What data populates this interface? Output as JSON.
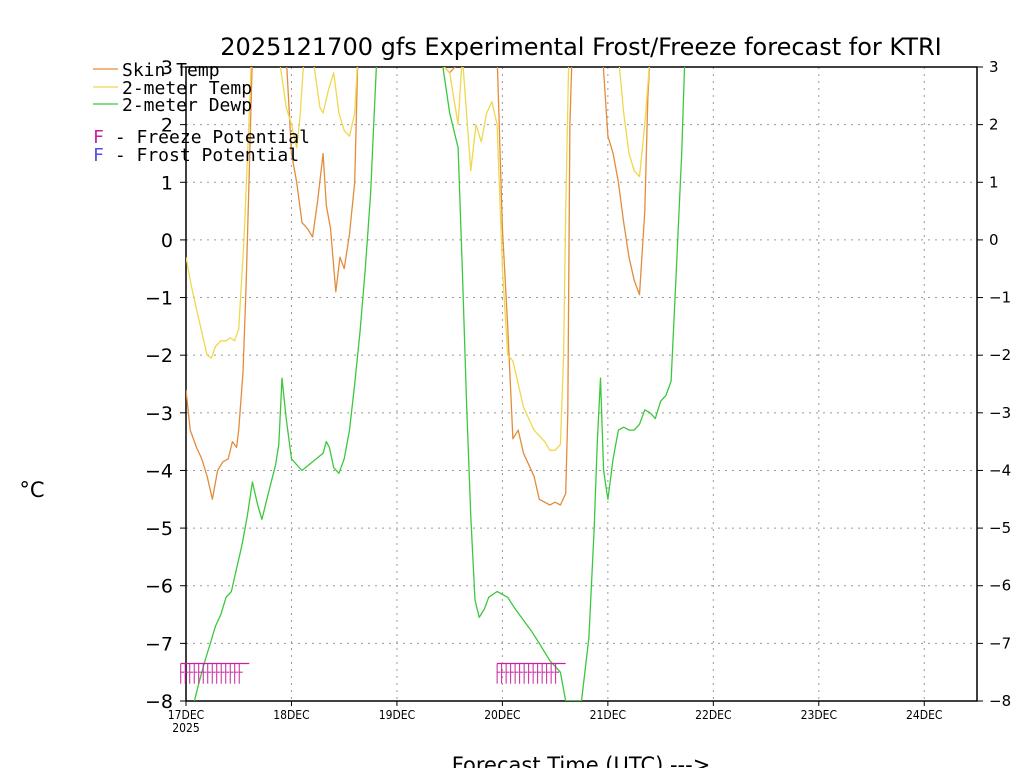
{
  "chart_data": {
    "type": "line",
    "title": "2025121700 gfs Experimental Frost/Freeze forecast for KTRI",
    "xlabel": "Forecast Time (UTC) --->",
    "ylabel": "°C",
    "ylim": [
      -8,
      3
    ],
    "xlim": [
      0,
      7.5
    ],
    "yticks": [
      3,
      2,
      1,
      0,
      -1,
      -2,
      -3,
      -4,
      -5,
      -6,
      -7,
      -8
    ],
    "ytick_labels": [
      "3",
      "2",
      "1",
      "0",
      "−1",
      "−2",
      "−3",
      "−4",
      "−5",
      "−6",
      "−7",
      "−8"
    ],
    "xticks": [
      0,
      1,
      2,
      3,
      4,
      5,
      6,
      7
    ],
    "xtick_labels": [
      "17DEC",
      "18DEC",
      "19DEC",
      "20DEC",
      "21DEC",
      "22DEC",
      "23DEC",
      "24DEC"
    ],
    "x_year_label": "2025",
    "grid": true,
    "series": [
      {
        "name": "Skin Temp",
        "color": "#e38c3c",
        "points": [
          [
            0,
            -2.6
          ],
          [
            0.04,
            -3.3
          ],
          [
            0.1,
            -3.6
          ],
          [
            0.15,
            -3.8
          ],
          [
            0.2,
            -4.1
          ],
          [
            0.25,
            -4.5
          ],
          [
            0.3,
            -4.0
          ],
          [
            0.35,
            -3.85
          ],
          [
            0.4,
            -3.8
          ],
          [
            0.44,
            -3.5
          ],
          [
            0.48,
            -3.6
          ],
          [
            0.5,
            -3.3
          ],
          [
            0.54,
            -2.3
          ],
          [
            0.57,
            -0.8
          ],
          [
            0.6,
            1.2
          ],
          [
            0.63,
            3.2
          ],
          [
            0.95,
            3.2
          ],
          [
            1.0,
            1.5
          ],
          [
            1.05,
            1.0
          ],
          [
            1.1,
            0.3
          ],
          [
            1.15,
            0.2
          ],
          [
            1.2,
            0.05
          ],
          [
            1.25,
            0.7
          ],
          [
            1.3,
            1.5
          ],
          [
            1.33,
            0.6
          ],
          [
            1.37,
            0.2
          ],
          [
            1.42,
            -0.9
          ],
          [
            1.46,
            -0.3
          ],
          [
            1.5,
            -0.5
          ],
          [
            1.55,
            0.1
          ],
          [
            1.6,
            1.0
          ],
          [
            1.63,
            3.2
          ],
          [
            2.35,
            3.2
          ],
          [
            2.45,
            3.0
          ],
          [
            2.5,
            2.9
          ],
          [
            2.55,
            3.0
          ],
          [
            2.6,
            3.2
          ],
          [
            2.95,
            3.2
          ],
          [
            3.0,
            0.2
          ],
          [
            3.05,
            -1.5
          ],
          [
            3.1,
            -3.45
          ],
          [
            3.15,
            -3.3
          ],
          [
            3.2,
            -3.7
          ],
          [
            3.3,
            -4.1
          ],
          [
            3.35,
            -4.5
          ],
          [
            3.45,
            -4.6
          ],
          [
            3.5,
            -4.55
          ],
          [
            3.55,
            -4.6
          ],
          [
            3.6,
            -4.4
          ],
          [
            3.62,
            -3.0
          ],
          [
            3.64,
            2.0
          ],
          [
            3.66,
            3.2
          ],
          [
            3.95,
            3.2
          ],
          [
            4.0,
            1.8
          ],
          [
            4.05,
            1.5
          ],
          [
            4.1,
            1.0
          ],
          [
            4.15,
            0.3
          ],
          [
            4.2,
            -0.3
          ],
          [
            4.25,
            -0.7
          ],
          [
            4.3,
            -0.95
          ],
          [
            4.35,
            0.5
          ],
          [
            4.38,
            2.5
          ],
          [
            4.4,
            3.2
          ]
        ]
      },
      {
        "name": "2-meter Temp",
        "color": "#f0d84c",
        "points": [
          [
            0,
            -0.3
          ],
          [
            0.05,
            -0.8
          ],
          [
            0.1,
            -1.2
          ],
          [
            0.15,
            -1.6
          ],
          [
            0.2,
            -2.0
          ],
          [
            0.24,
            -2.05
          ],
          [
            0.28,
            -1.85
          ],
          [
            0.33,
            -1.75
          ],
          [
            0.38,
            -1.75
          ],
          [
            0.42,
            -1.7
          ],
          [
            0.46,
            -1.75
          ],
          [
            0.5,
            -1.55
          ],
          [
            0.55,
            0.0
          ],
          [
            0.6,
            2.2
          ],
          [
            0.62,
            3.2
          ],
          [
            0.88,
            3.2
          ],
          [
            0.95,
            2.3
          ],
          [
            1.0,
            2.0
          ],
          [
            1.05,
            1.6
          ],
          [
            1.08,
            2.1
          ],
          [
            1.12,
            3.2
          ],
          [
            1.2,
            3.2
          ],
          [
            1.27,
            2.3
          ],
          [
            1.3,
            2.2
          ],
          [
            1.35,
            2.6
          ],
          [
            1.4,
            2.9
          ],
          [
            1.45,
            2.2
          ],
          [
            1.5,
            1.9
          ],
          [
            1.55,
            1.8
          ],
          [
            1.6,
            2.2
          ],
          [
            1.63,
            3.2
          ],
          [
            2.35,
            3.2
          ],
          [
            2.45,
            3.0
          ],
          [
            2.5,
            2.9
          ],
          [
            2.58,
            2.0
          ],
          [
            2.62,
            3.2
          ],
          [
            2.7,
            1.2
          ],
          [
            2.75,
            2.0
          ],
          [
            2.8,
            1.7
          ],
          [
            2.85,
            2.2
          ],
          [
            2.9,
            2.4
          ],
          [
            2.95,
            2.0
          ],
          [
            3.0,
            -0.5
          ],
          [
            3.05,
            -2.0
          ],
          [
            3.1,
            -2.1
          ],
          [
            3.15,
            -2.5
          ],
          [
            3.2,
            -2.9
          ],
          [
            3.3,
            -3.3
          ],
          [
            3.4,
            -3.5
          ],
          [
            3.45,
            -3.65
          ],
          [
            3.5,
            -3.65
          ],
          [
            3.55,
            -3.55
          ],
          [
            3.58,
            -2.0
          ],
          [
            3.6,
            0.5
          ],
          [
            3.63,
            3.2
          ],
          [
            4.1,
            3.2
          ],
          [
            4.15,
            2.2
          ],
          [
            4.2,
            1.5
          ],
          [
            4.25,
            1.2
          ],
          [
            4.3,
            1.1
          ],
          [
            4.35,
            2.0
          ],
          [
            4.4,
            3.2
          ]
        ]
      },
      {
        "name": "2-meter Dewp",
        "color": "#3cc83c",
        "points": [
          [
            0.08,
            -8.0
          ],
          [
            0.12,
            -7.7
          ],
          [
            0.18,
            -7.3
          ],
          [
            0.23,
            -7.0
          ],
          [
            0.28,
            -6.7
          ],
          [
            0.33,
            -6.5
          ],
          [
            0.38,
            -6.2
          ],
          [
            0.43,
            -6.1
          ],
          [
            0.48,
            -5.7
          ],
          [
            0.53,
            -5.3
          ],
          [
            0.58,
            -4.8
          ],
          [
            0.63,
            -4.2
          ],
          [
            0.68,
            -4.6
          ],
          [
            0.72,
            -4.85
          ],
          [
            0.78,
            -4.4
          ],
          [
            0.85,
            -3.9
          ],
          [
            0.88,
            -3.55
          ],
          [
            0.91,
            -2.4
          ],
          [
            0.95,
            -3.1
          ],
          [
            1.0,
            -3.8
          ],
          [
            1.1,
            -4.0
          ],
          [
            1.2,
            -3.85
          ],
          [
            1.3,
            -3.7
          ],
          [
            1.33,
            -3.5
          ],
          [
            1.36,
            -3.6
          ],
          [
            1.4,
            -3.95
          ],
          [
            1.45,
            -4.05
          ],
          [
            1.5,
            -3.8
          ],
          [
            1.55,
            -3.3
          ],
          [
            1.6,
            -2.5
          ],
          [
            1.65,
            -1.6
          ],
          [
            1.7,
            -0.5
          ],
          [
            1.75,
            0.8
          ],
          [
            1.78,
            2.0
          ],
          [
            1.81,
            3.2
          ],
          [
            2.42,
            3.2
          ],
          [
            2.5,
            2.2
          ],
          [
            2.58,
            1.6
          ],
          [
            2.62,
            -0.5
          ],
          [
            2.66,
            -2.8
          ],
          [
            2.7,
            -4.8
          ],
          [
            2.74,
            -6.25
          ],
          [
            2.78,
            -6.55
          ],
          [
            2.83,
            -6.4
          ],
          [
            2.87,
            -6.2
          ],
          [
            2.95,
            -6.1
          ],
          [
            3.05,
            -6.2
          ],
          [
            3.12,
            -6.4
          ],
          [
            3.2,
            -6.6
          ],
          [
            3.28,
            -6.8
          ],
          [
            3.35,
            -7.0
          ],
          [
            3.45,
            -7.3
          ],
          [
            3.55,
            -7.5
          ],
          [
            3.6,
            -8.0
          ],
          [
            3.75,
            -8.0
          ],
          [
            3.82,
            -6.9
          ],
          [
            3.87,
            -5.0
          ],
          [
            3.9,
            -3.5
          ],
          [
            3.93,
            -2.4
          ],
          [
            3.96,
            -4.0
          ],
          [
            4.0,
            -4.5
          ],
          [
            4.05,
            -3.8
          ],
          [
            4.1,
            -3.3
          ],
          [
            4.15,
            -3.25
          ],
          [
            4.2,
            -3.3
          ],
          [
            4.25,
            -3.3
          ],
          [
            4.3,
            -3.2
          ],
          [
            4.35,
            -2.95
          ],
          [
            4.4,
            -3.0
          ],
          [
            4.45,
            -3.1
          ],
          [
            4.5,
            -2.8
          ],
          [
            4.55,
            -2.7
          ],
          [
            4.6,
            -2.45
          ],
          [
            4.65,
            -0.5
          ],
          [
            4.7,
            1.5
          ],
          [
            4.73,
            3.2
          ]
        ]
      }
    ],
    "freeze_marker_spans": [
      [
        -0.05,
        0.6
      ],
      [
        2.95,
        3.6
      ]
    ],
    "legend": [
      {
        "label": "Skin Temp",
        "color": "#e38c3c"
      },
      {
        "label": "2-meter Temp",
        "color": "#f0d84c"
      },
      {
        "label": "2-meter Dewp",
        "color": "#3cc83c"
      }
    ],
    "potential_legend": [
      {
        "letter": "F",
        "text": " - Freeze Potential",
        "color": "#c8209e"
      },
      {
        "letter": "F",
        "text": " - Frost Potential",
        "color": "#5050e0"
      }
    ]
  }
}
